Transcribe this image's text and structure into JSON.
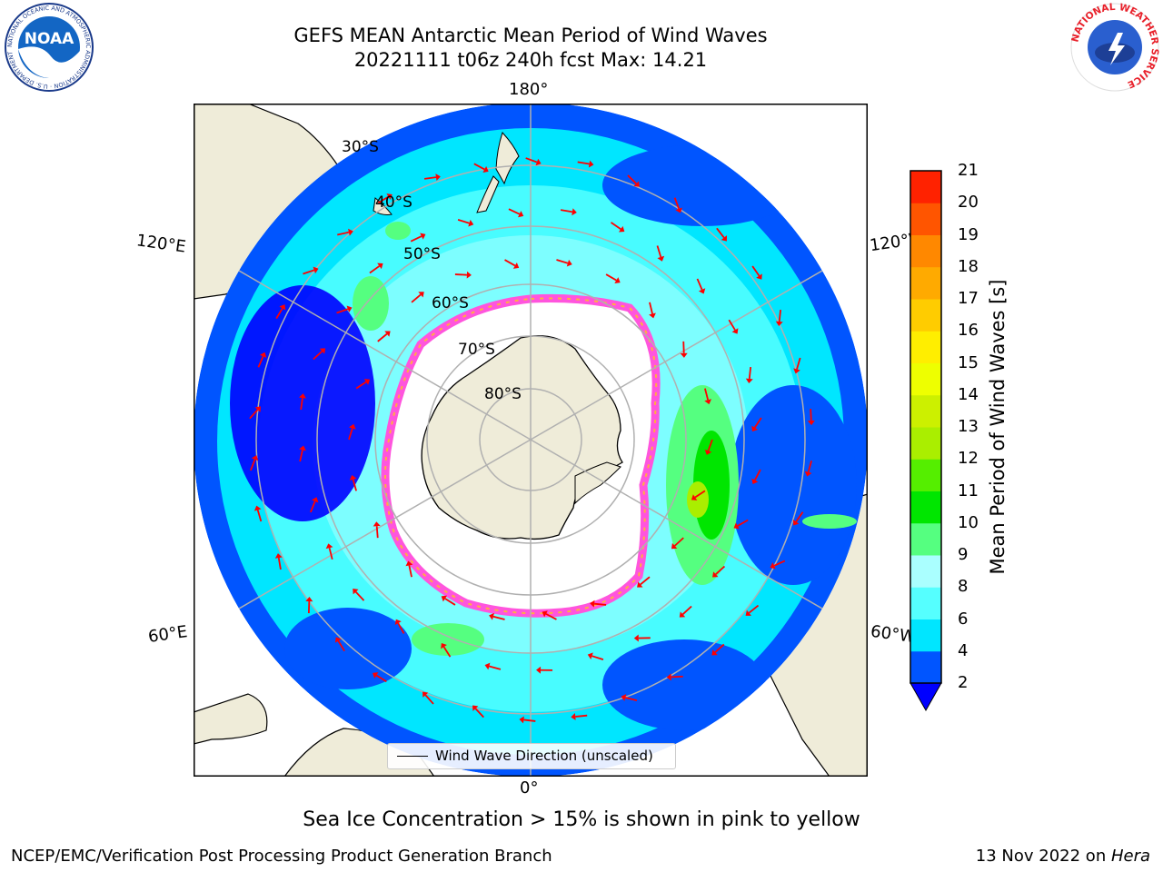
{
  "title_line1": "GEFS MEAN Antarctic Mean Period of Wind Waves",
  "title_line2": "20221111 t06z 240h fcst   Max: 14.21",
  "map": {
    "projection": "south-polar-stereographic",
    "lon_labels": [
      "180°",
      "120°E",
      "120°W",
      "60°E",
      "60°W",
      "0°"
    ],
    "lat_labels": [
      "30°S",
      "40°S",
      "50°S",
      "60°S",
      "70°S",
      "80°S"
    ],
    "colors": {
      "land": "#efecd9",
      "sea_ice": "#ffffff",
      "ice_edge": "#ff55dd",
      "ice_edge_inner": "#ffb040",
      "arrow": "#ff0000",
      "grid": "#b0b0b0"
    }
  },
  "colorbar": {
    "label": "Mean Period of Wind Waves [s]",
    "ticks": [
      "2",
      "4",
      "6",
      "8",
      "9",
      "10",
      "11",
      "12",
      "13",
      "14",
      "15",
      "16",
      "17",
      "18",
      "19",
      "20",
      "21"
    ],
    "colors": [
      "#0055ff",
      "#00e6ff",
      "#55ffff",
      "#aaffff",
      "#55ff80",
      "#00e600",
      "#55ee00",
      "#aaee00",
      "#ccf000",
      "#eeff00",
      "#ffee00",
      "#ffcc00",
      "#ffaa00",
      "#ff8800",
      "#ff5500",
      "#ff2200"
    ],
    "under_color": "#0000ff"
  },
  "legend_label": "Wind Wave Direction (unscaled)",
  "footer_note": "Sea Ice Concentration > 15% is shown in pink to yellow",
  "credit_left": "NCEP/EMC/Verification Post Processing Product Generation Branch",
  "credit_right_prefix": "13 Nov 2022 on ",
  "credit_right_host": "Hera",
  "logos": {
    "noaa_text": "NOAA",
    "noaa_ring": "NATIONAL OCEANIC AND ATMOSPHERIC ADMINISTRATION · U.S. DEPARTMENT OF COMMERCE",
    "nws_ring": "NATIONAL WEATHER SERVICE"
  }
}
